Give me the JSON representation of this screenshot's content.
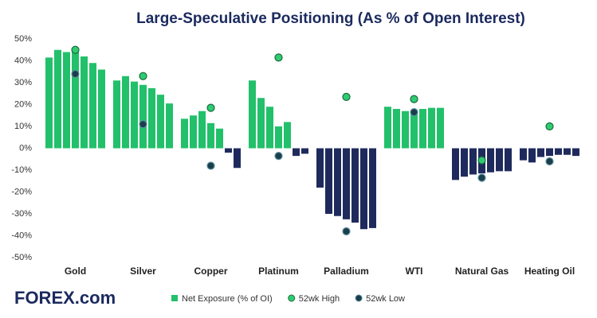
{
  "chart_data": {
    "type": "grouped-bar-markers",
    "title": "Large-Speculative Positioning (As % of Open Interest)",
    "logo": "FOREX.com",
    "categories": [
      "Gold",
      "Silver",
      "Copper",
      "Platinum",
      "Palladium",
      "WTI",
      "Natural Gas",
      "Heating Oil"
    ],
    "series": [
      {
        "name": "Net Exposure (% of OI)",
        "color": "#22c06a",
        "negative_color": "#1f2a5c",
        "kind": "bars",
        "values": [
          [
            41.5,
            45,
            44,
            45,
            42,
            39,
            36
          ],
          [
            31,
            33,
            30.5,
            29,
            27.5,
            24.5,
            20.5
          ],
          [
            13.5,
            15,
            17,
            11.5,
            9,
            -2,
            -9
          ],
          [
            31,
            23,
            19,
            10,
            12,
            -3.5,
            -2.5
          ],
          [
            -18,
            -30,
            -31,
            -32.5,
            -34,
            -37,
            -36.5
          ],
          [
            19,
            18,
            17,
            17.5,
            18,
            18.5,
            18.5
          ],
          [
            -14.5,
            -13,
            -12,
            -11.5,
            -11,
            -10.5,
            -10.5
          ],
          [
            -5.5,
            -6.5,
            -4,
            -3.5,
            -3,
            -3,
            -3.5
          ]
        ]
      },
      {
        "name": "52wk High",
        "color": "#2ecc71",
        "kind": "marker",
        "values": [
          45,
          33,
          18.5,
          41.5,
          23.5,
          22.5,
          -5.5,
          10
        ]
      },
      {
        "name": "52wk Low",
        "color": "#1a3e4c",
        "kind": "marker",
        "values": [
          34,
          11,
          -8,
          -3.5,
          -38,
          16.5,
          -13.5,
          -6
        ]
      }
    ],
    "ylim": [
      -50,
      50
    ],
    "yticks": [
      {
        "value": 50,
        "label": "50%"
      },
      {
        "value": 40,
        "label": "40%"
      },
      {
        "value": 30,
        "label": "30%"
      },
      {
        "value": 20,
        "label": "20%"
      },
      {
        "value": 10,
        "label": "10%"
      },
      {
        "value": 0,
        "label": "0%"
      },
      {
        "value": -10,
        "label": "-10%"
      },
      {
        "value": -20,
        "label": "-20%"
      },
      {
        "value": -30,
        "label": "-30%"
      },
      {
        "value": -40,
        "label": "-40%"
      },
      {
        "value": -50,
        "label": "-50%"
      }
    ],
    "grid": false,
    "legend": "bottom"
  }
}
